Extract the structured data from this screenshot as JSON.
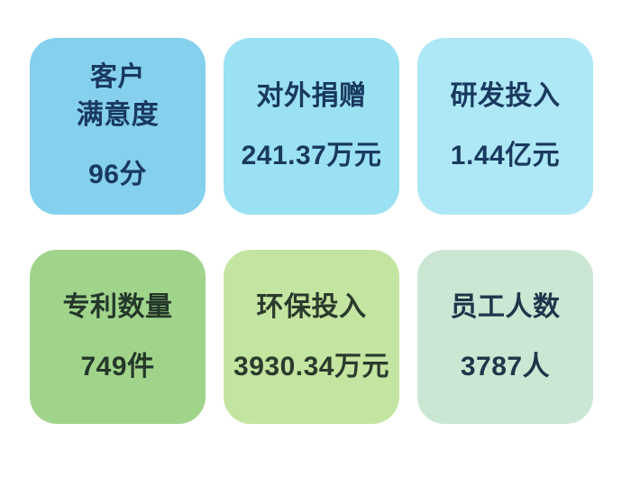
{
  "page": {
    "background": "#ffffff",
    "text_dark_navy": "#19395F",
    "text_dark_green": "#24372A"
  },
  "cards": [
    {
      "id": "customer-satisfaction",
      "title": "客户\n满意度",
      "value": "96分",
      "bg": "#85D0ED",
      "fg": "#19395F"
    },
    {
      "id": "external-donations",
      "title": "对外捐赠",
      "value": "241.37万元",
      "bg": "#9AE1F3",
      "fg": "#19395F"
    },
    {
      "id": "rd-investment",
      "title": "研发投入",
      "value": "1.44亿元",
      "bg": "#AEE8F6",
      "fg": "#19395F"
    },
    {
      "id": "patent-count",
      "title": "专利数量",
      "value": "749件",
      "bg": "#A0D48B",
      "fg": "#24372A"
    },
    {
      "id": "environmental-investment",
      "title": "环保投入",
      "value": "3930.34万元",
      "bg": "#C4E5A1",
      "fg": "#2A3A2C"
    },
    {
      "id": "employee-count",
      "title": "员工人数",
      "value": "3787人",
      "bg": "#CBE7D3",
      "fg": "#20344A"
    }
  ],
  "chart_data": {
    "type": "table",
    "title": "",
    "columns": [
      "指标",
      "数值"
    ],
    "rows": [
      [
        "客户满意度",
        "96分"
      ],
      [
        "对外捐赠",
        "241.37万元"
      ],
      [
        "研发投入",
        "1.44亿元"
      ],
      [
        "专利数量",
        "749件"
      ],
      [
        "环保投入",
        "3930.34万元"
      ],
      [
        "员工人数",
        "3787人"
      ]
    ],
    "values_numeric": {
      "customer_satisfaction_points": 96,
      "external_donations_wan_yuan": 241.37,
      "rd_investment_yi_yuan": 1.44,
      "patent_count_items": 749,
      "environmental_investment_wan_yuan": 3930.34,
      "employee_count_people": 3787
    }
  }
}
